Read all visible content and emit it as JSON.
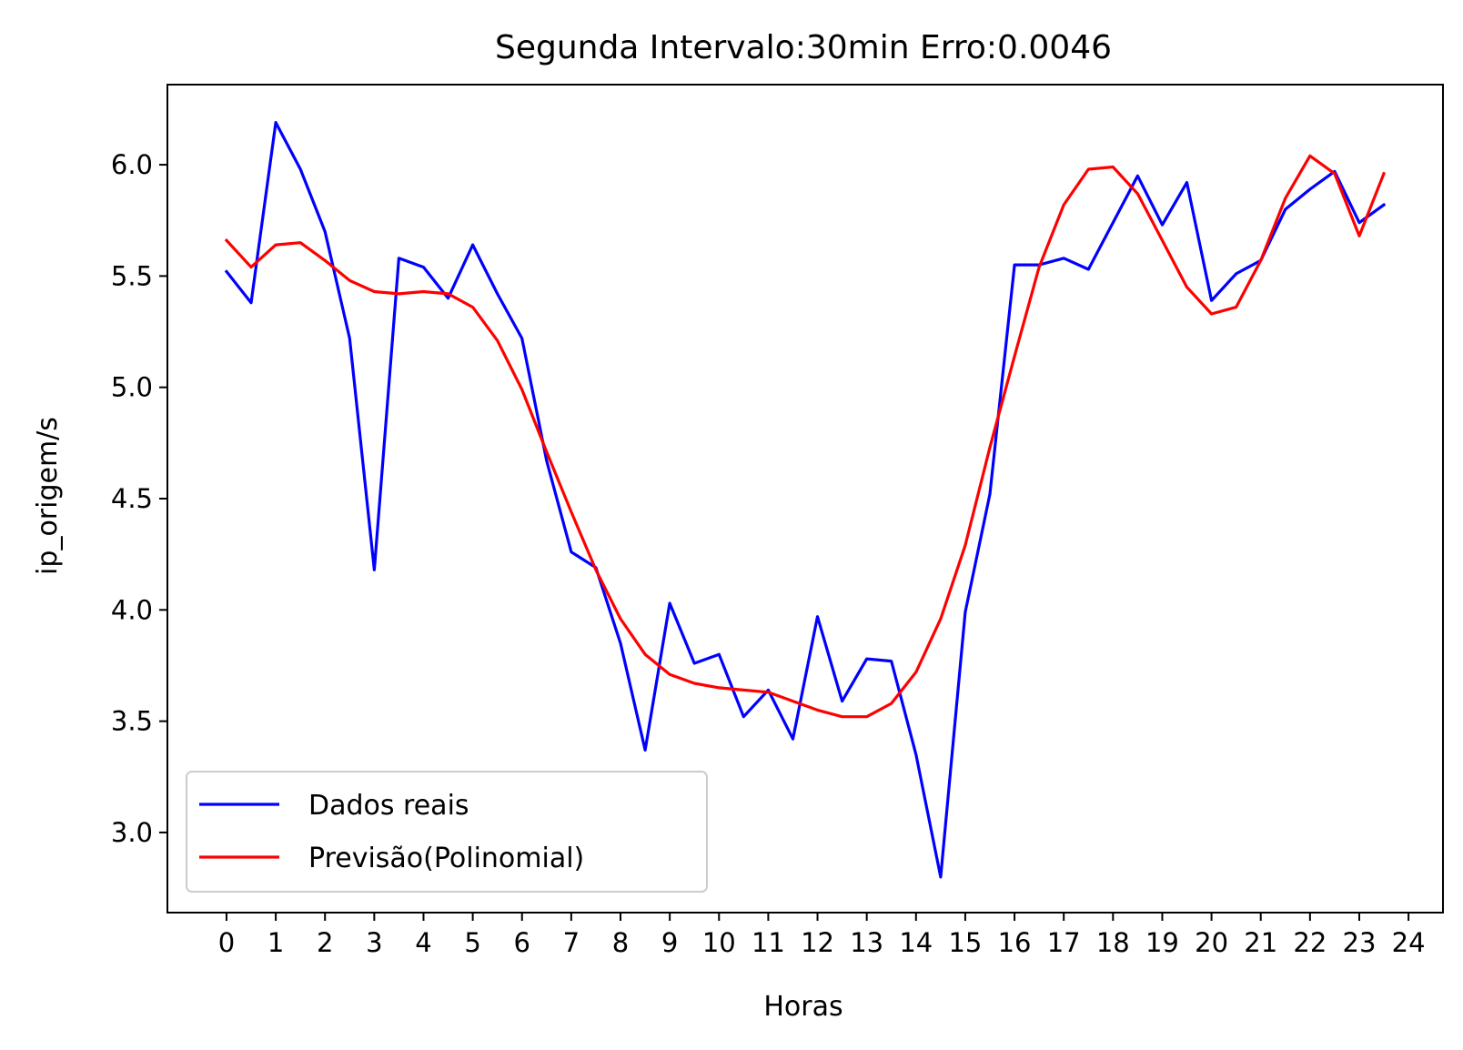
{
  "chart_data": {
    "type": "line",
    "title": "Segunda Intervalo:30min Erro:0.0046",
    "xlabel": "Horas",
    "ylabel": "ip_origem/s",
    "xlim": [
      -1.2,
      24.7
    ],
    "ylim": [
      2.64,
      6.36
    ],
    "xticks": [
      0,
      1,
      2,
      3,
      4,
      5,
      6,
      7,
      8,
      9,
      10,
      11,
      12,
      13,
      14,
      15,
      16,
      17,
      18,
      19,
      20,
      21,
      22,
      23,
      24
    ],
    "xtick_labels": [
      "0",
      "1",
      "2",
      "3",
      "4",
      "5",
      "6",
      "7",
      "8",
      "9",
      "10",
      "11",
      "12",
      "13",
      "14",
      "15",
      "16",
      "17",
      "18",
      "19",
      "20",
      "21",
      "22",
      "23",
      "24"
    ],
    "yticks": [
      3.0,
      3.5,
      4.0,
      4.5,
      5.0,
      5.5,
      6.0
    ],
    "ytick_labels": [
      "3.0",
      "3.5",
      "4.0",
      "4.5",
      "5.0",
      "5.5",
      "6.0"
    ],
    "grid": false,
    "legend_position": "lower-left",
    "x": [
      0,
      0.5,
      1,
      1.5,
      2,
      2.5,
      3,
      3.5,
      4,
      4.5,
      5,
      5.5,
      6,
      6.5,
      7,
      7.5,
      8,
      8.5,
      9,
      9.5,
      10,
      10.5,
      11,
      11.5,
      12,
      12.5,
      13,
      13.5,
      14,
      14.5,
      15,
      15.5,
      16,
      16.5,
      17,
      17.5,
      18,
      18.5,
      19,
      19.5,
      20,
      20.5,
      21,
      21.5,
      22,
      22.5,
      23,
      23.5
    ],
    "series": [
      {
        "name": "Dados reais",
        "color": "#0000ff",
        "values": [
          5.52,
          5.38,
          6.19,
          5.98,
          5.7,
          5.22,
          4.18,
          5.58,
          5.54,
          5.4,
          5.64,
          5.42,
          5.22,
          4.67,
          4.26,
          4.19,
          3.85,
          3.37,
          4.03,
          3.76,
          3.8,
          3.52,
          3.64,
          3.42,
          3.97,
          3.59,
          3.78,
          3.77,
          3.35,
          2.8,
          3.99,
          4.52,
          5.55,
          5.55,
          5.58,
          5.53,
          5.74,
          5.95,
          5.73,
          5.92,
          5.39,
          5.51,
          5.57,
          5.8,
          5.89,
          5.97,
          5.74,
          5.82
        ]
      },
      {
        "name": "Previsão(Polinomial)",
        "color": "#ff0000",
        "values": [
          5.66,
          5.54,
          5.64,
          5.65,
          5.57,
          5.48,
          5.43,
          5.42,
          5.43,
          5.42,
          5.36,
          5.21,
          4.99,
          4.71,
          4.44,
          4.18,
          3.96,
          3.8,
          3.71,
          3.67,
          3.65,
          3.64,
          3.63,
          3.59,
          3.55,
          3.52,
          3.52,
          3.58,
          3.72,
          3.96,
          4.29,
          4.73,
          5.14,
          5.54,
          5.82,
          5.98,
          5.99,
          5.87,
          5.66,
          5.45,
          5.33,
          5.36,
          5.57,
          5.85,
          6.04,
          5.96,
          5.68,
          5.96
        ]
      }
    ]
  }
}
